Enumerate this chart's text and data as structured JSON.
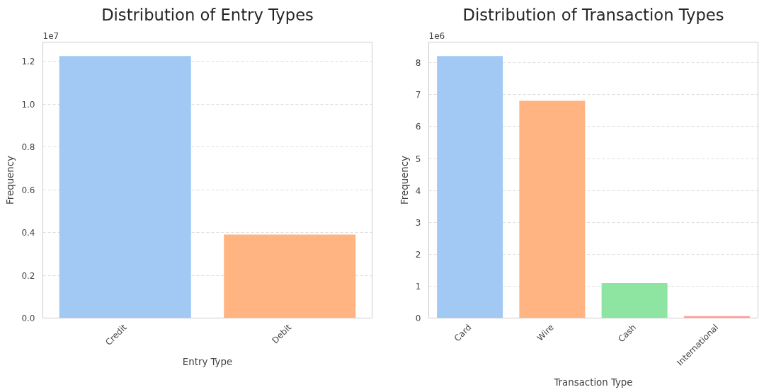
{
  "chart_data": [
    {
      "type": "bar",
      "title": "Distribution of Entry Types",
      "xlabel": "Entry Type",
      "ylabel": "Frequency",
      "categories": [
        "Credit",
        "Debit"
      ],
      "values": [
        1.225,
        0.39
      ],
      "colors": [
        "#a1c9f4",
        "#ffb482"
      ],
      "ylim": [
        0,
        1.29
      ],
      "yticks": [
        {
          "value": 0,
          "label": "0.0"
        },
        0.2,
        0.4,
        0.6,
        0.8,
        {
          "value": 1,
          "label": "1.0"
        },
        1.2
      ],
      "grid": "y",
      "annotations": [
        "1e7"
      ]
    },
    {
      "type": "bar",
      "title": "Distribution of Transaction Types",
      "xlabel": "Transaction Type",
      "ylabel": "Frequency",
      "categories": [
        "Card",
        "Wire",
        "Cash",
        "International"
      ],
      "values": [
        8.21,
        6.81,
        1.1,
        0.06
      ],
      "colors": [
        "#a1c9f4",
        "#ffb482",
        "#8de5a1",
        "#ff9f9b"
      ],
      "ylim": [
        0,
        8.65
      ],
      "yticks": [
        0,
        1,
        2,
        3,
        4,
        5,
        6,
        7,
        8
      ],
      "grid": "y",
      "annotations": [
        "1e6"
      ]
    }
  ]
}
